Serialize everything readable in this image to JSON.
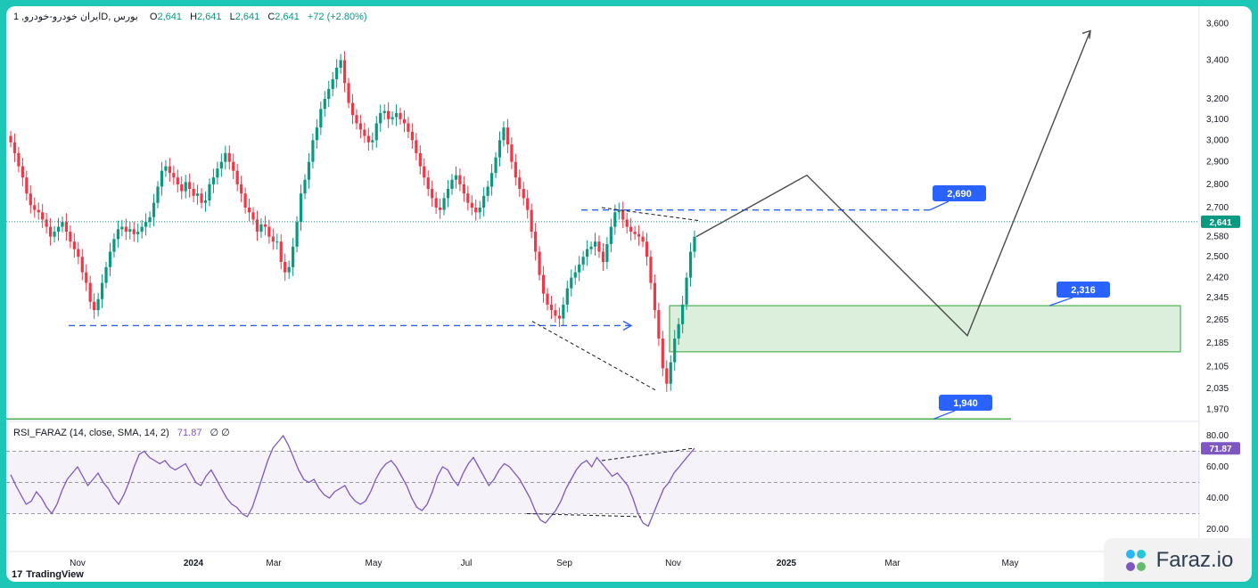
{
  "legend": {
    "symbol": "ایران خودرو-خودرو, 1D, بورس",
    "o_label": "O",
    "o_value": "2,641",
    "h_label": "H",
    "h_value": "2,641",
    "l_label": "L",
    "l_value": "2,641",
    "c_label": "C",
    "c_value": "2,641",
    "change": "+72 (+2.80%)"
  },
  "rsi_legend": {
    "name": "RSI_FARAZ (14, close, SMA, 14, 2)",
    "value": "71.87",
    "extra": "∅ ∅"
  },
  "branding": {
    "tradingview": "TradingView",
    "faraz": "Faraz.io"
  },
  "colors": {
    "up": "#089981",
    "down": "#f23645",
    "accent": "#2962ff",
    "rsi": "#7e57c2",
    "zone": "#4caf50"
  },
  "chart_data": [
    {
      "type": "candlestick",
      "price_axis_ticks": [
        1970,
        2035,
        2105,
        2185,
        2265,
        2345,
        2420,
        2500,
        2580,
        2700,
        2800,
        2900,
        3000,
        3100,
        3200,
        3400,
        3600
      ],
      "price_axis_labels": [
        "1,970",
        "2,035",
        "2,105",
        "2,185",
        "2,265",
        "2,345",
        "2,420",
        "2,500",
        "2,580",
        "2,700",
        "2,800",
        "2,900",
        "3,000",
        "3,100",
        "3,200",
        "3,400",
        "3,600"
      ],
      "log_scale": true,
      "time_axis_labels": [
        "Nov",
        "2024",
        "Mar",
        "May",
        "Jul",
        "Sep",
        "Nov",
        "2025",
        "Mar",
        "May"
      ],
      "last_price": 2641,
      "last_price_label": "2,641",
      "levels": [
        {
          "value": 2690,
          "label": "2,690"
        },
        {
          "value": 2316,
          "label": "2,316"
        },
        {
          "value": 1940,
          "label": "1,940"
        }
      ],
      "support_zone": [
        2155,
        2316
      ],
      "close_path": [
        2990,
        2940,
        2880,
        2830,
        2760,
        2710,
        2690,
        2680,
        2650,
        2620,
        2580,
        2600,
        2620,
        2640,
        2600,
        2560,
        2530,
        2500,
        2440,
        2400,
        2330,
        2300,
        2340,
        2400,
        2460,
        2520,
        2570,
        2610,
        2620,
        2600,
        2610,
        2590,
        2600,
        2620,
        2640,
        2660,
        2720,
        2790,
        2860,
        2880,
        2850,
        2830,
        2800,
        2770,
        2810,
        2780,
        2750,
        2760,
        2720,
        2730,
        2800,
        2830,
        2870,
        2900,
        2940,
        2900,
        2860,
        2800,
        2760,
        2700,
        2680,
        2650,
        2600,
        2630,
        2620,
        2580,
        2560,
        2560,
        2480,
        2440,
        2460,
        2540,
        2640,
        2760,
        2820,
        2900,
        3000,
        3060,
        3150,
        3200,
        3250,
        3300,
        3360,
        3400,
        3280,
        3180,
        3120,
        3080,
        3050,
        3020,
        2990,
        3000,
        3080,
        3130,
        3140,
        3100,
        3110,
        3130,
        3100,
        3080,
        3040,
        3000,
        2940,
        2880,
        2830,
        2780,
        2740,
        2700,
        2690,
        2740,
        2780,
        2820,
        2840,
        2800,
        2760,
        2720,
        2700,
        2680,
        2700,
        2750,
        2790,
        2850,
        2920,
        3000,
        3060,
        2980,
        2900,
        2830,
        2780,
        2740,
        2690,
        2600,
        2520,
        2430,
        2360,
        2320,
        2300,
        2280,
        2270,
        2320,
        2380,
        2420,
        2440,
        2470,
        2500,
        2530,
        2540,
        2560,
        2520,
        2480,
        2550,
        2620,
        2680,
        2690,
        2650,
        2620,
        2600,
        2590,
        2580,
        2560,
        2500,
        2400,
        2300,
        2200,
        2100,
        2050,
        2120,
        2200,
        2250,
        2320,
        2420,
        2520,
        2580
      ],
      "projection_path": [
        2580,
        2840,
        2210,
        3560
      ]
    },
    {
      "type": "line",
      "name": "RSI_FARAZ (14, close, SMA, 14, 2)",
      "ylim": [
        15,
        85
      ],
      "y_axis_labels": [
        "20.00",
        "40.00",
        "60.00",
        "80.00"
      ],
      "y_axis_ticks": [
        20,
        40,
        60,
        80
      ],
      "bands": [
        30,
        50,
        70
      ],
      "last_value": 71.87,
      "last_value_label": "71.87",
      "values": [
        55,
        48,
        42,
        36,
        38,
        44,
        40,
        34,
        30,
        36,
        45,
        52,
        56,
        60,
        54,
        48,
        52,
        56,
        50,
        46,
        40,
        36,
        42,
        50,
        60,
        68,
        70,
        66,
        64,
        62,
        64,
        60,
        58,
        60,
        62,
        56,
        50,
        48,
        54,
        58,
        52,
        46,
        40,
        36,
        34,
        30,
        28,
        34,
        44,
        54,
        64,
        72,
        76,
        80,
        74,
        66,
        58,
        52,
        50,
        52,
        46,
        42,
        40,
        44,
        46,
        48,
        42,
        38,
        36,
        38,
        44,
        52,
        58,
        62,
        64,
        60,
        54,
        48,
        40,
        34,
        32,
        36,
        44,
        54,
        60,
        58,
        52,
        48,
        56,
        62,
        66,
        60,
        54,
        48,
        52,
        58,
        62,
        60,
        56,
        52,
        46,
        40,
        32,
        26,
        24,
        28,
        32,
        38,
        46,
        52,
        58,
        62,
        64,
        60,
        66,
        62,
        58,
        54,
        56,
        52,
        48,
        40,
        30,
        24,
        22,
        30,
        38,
        46,
        50,
        56,
        60,
        64,
        68,
        71.87
      ]
    }
  ]
}
